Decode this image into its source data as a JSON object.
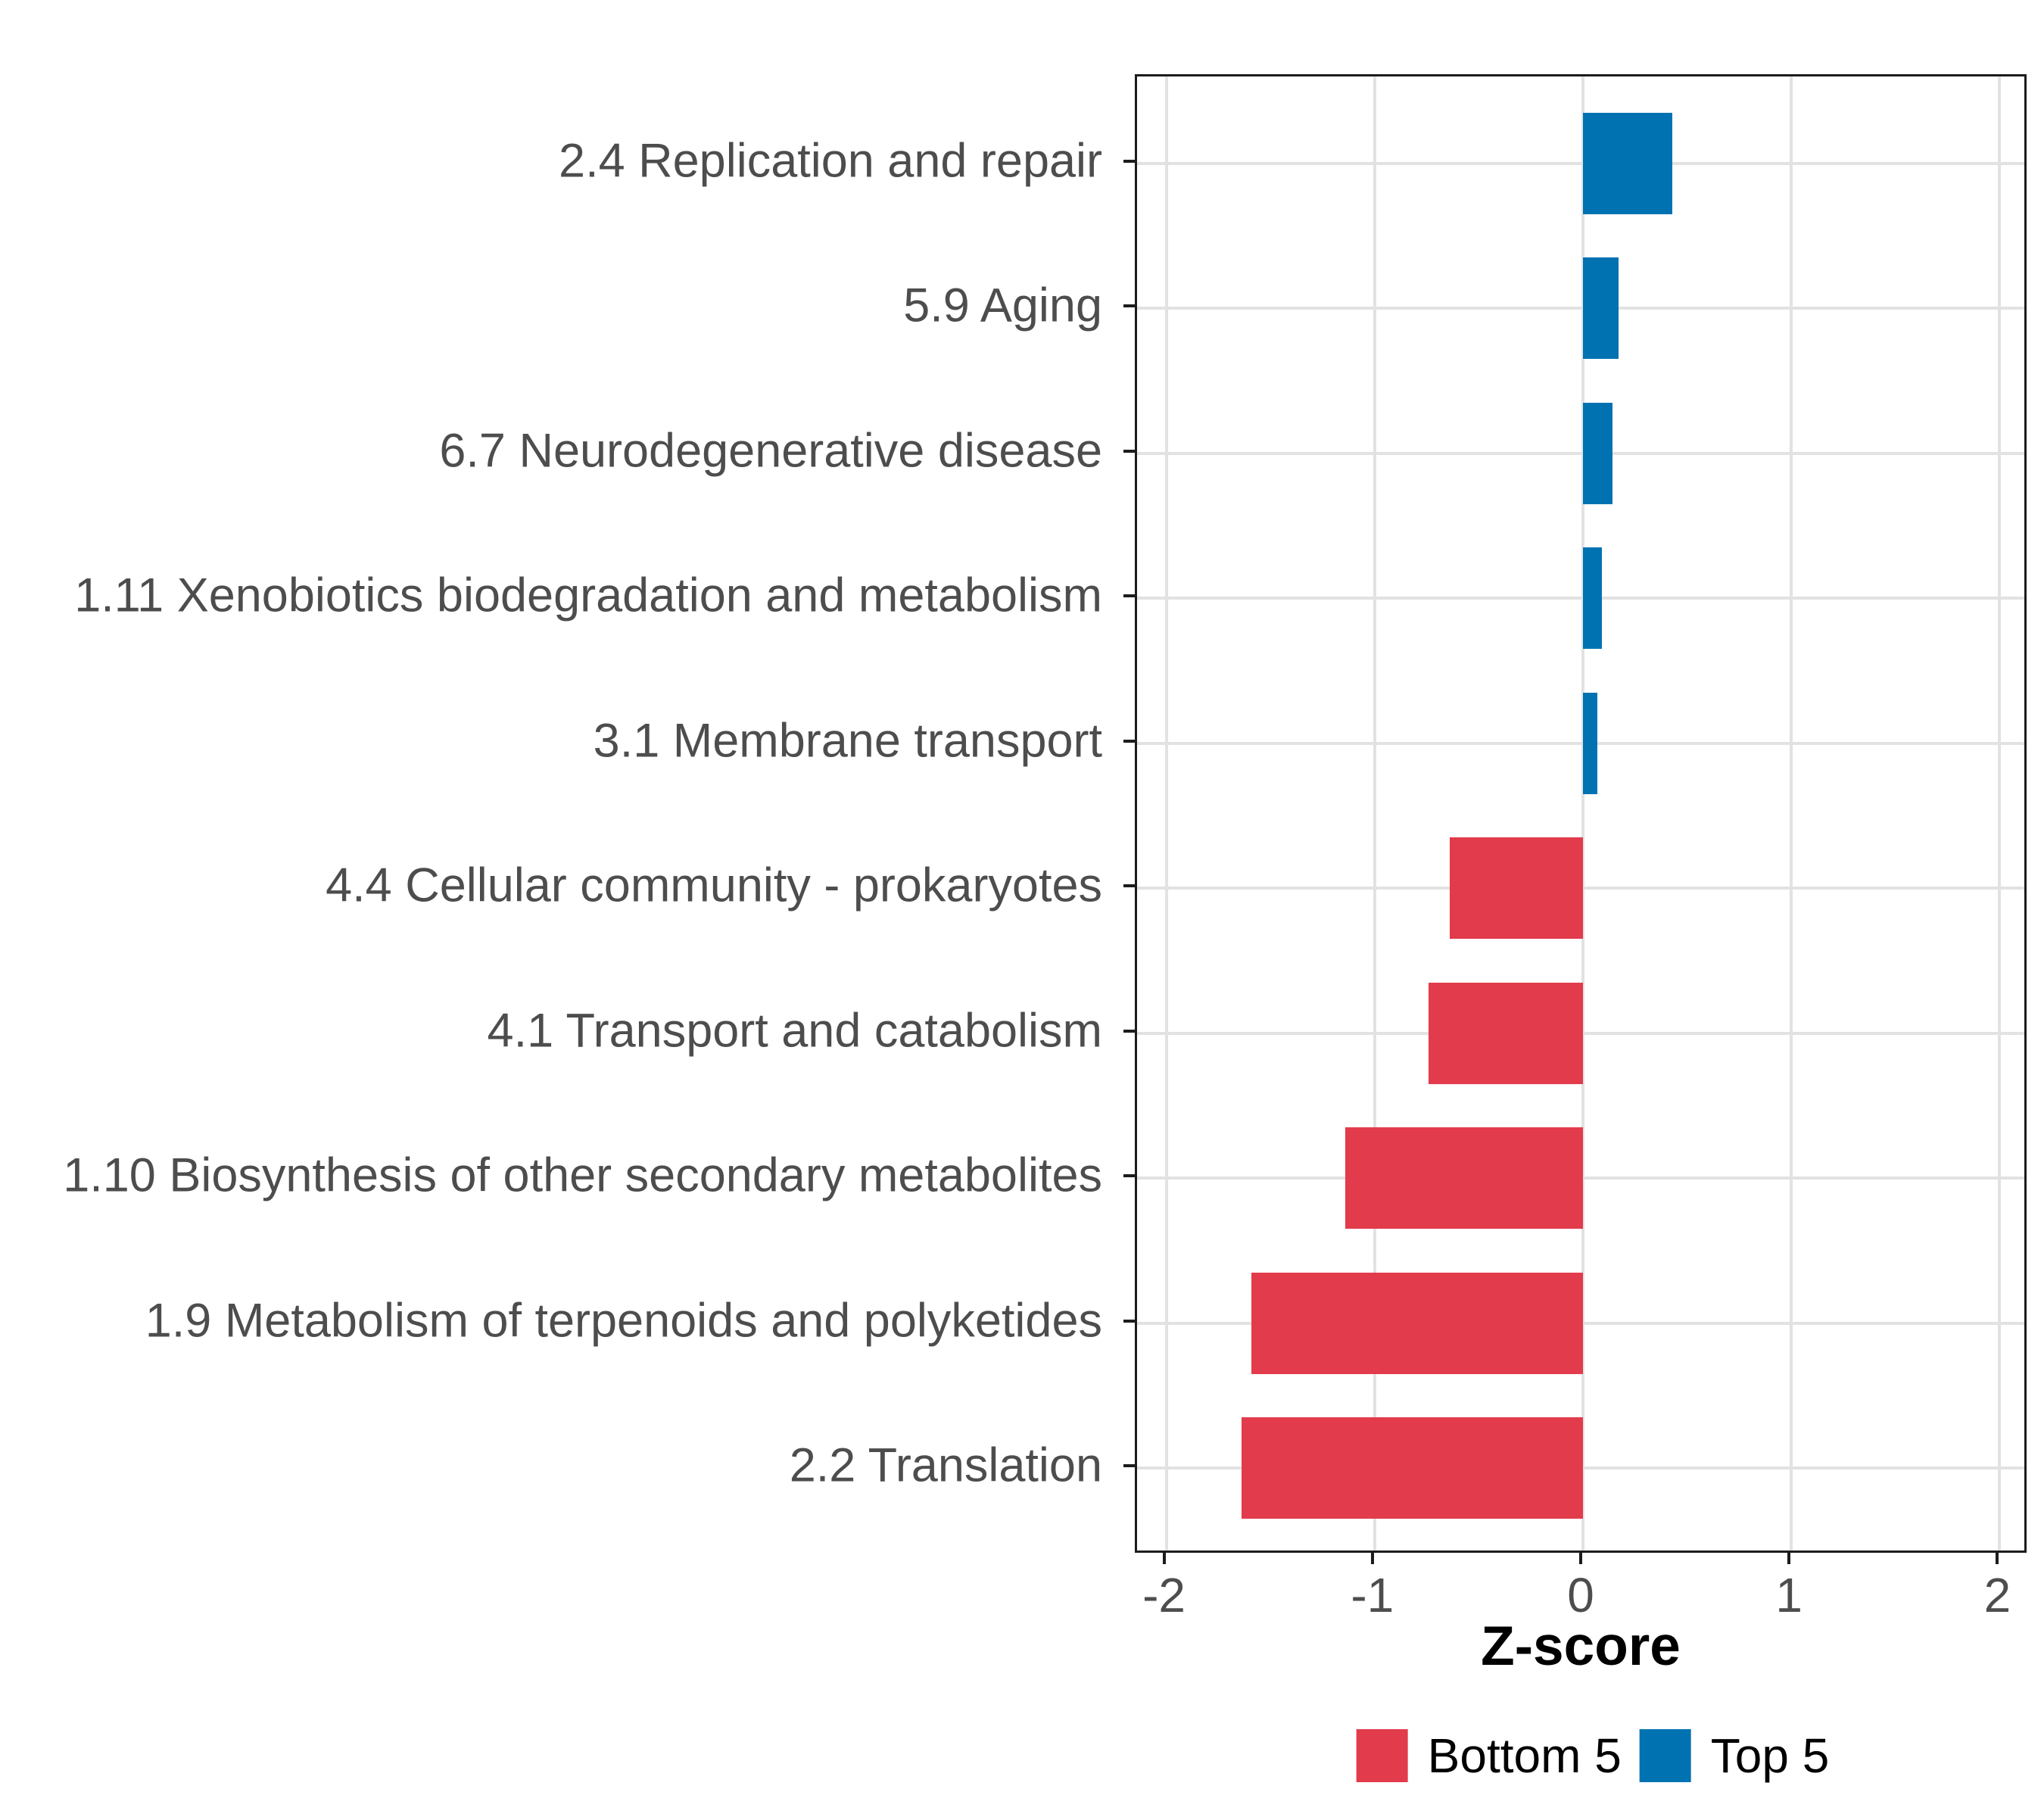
{
  "chart_data": {
    "type": "bar",
    "orientation": "horizontal",
    "title": "",
    "xlabel": "Z-score",
    "ylabel": "",
    "categories": [
      "2.4 Replication and repair",
      "5.9 Aging",
      "6.7 Neurodegenerative disease",
      "1.11 Xenobiotics biodegradation and metabolism",
      "3.1 Membrane transport",
      "4.4 Cellular community - prokaryotes",
      "4.1 Transport and catabolism",
      "1.10 Biosynthesis of other secondary metabolites",
      "1.9 Metabolism of terpenoids and polyketides",
      "2.2 Translation"
    ],
    "series": [
      {
        "name": "Z-score",
        "values": [
          0.43,
          0.17,
          0.14,
          0.09,
          0.07,
          -0.64,
          -0.74,
          -1.14,
          -1.59,
          -1.64
        ]
      }
    ],
    "groups": [
      "Top 5",
      "Top 5",
      "Top 5",
      "Top 5",
      "Top 5",
      "Bottom 5",
      "Bottom 5",
      "Bottom 5",
      "Bottom 5",
      "Bottom 5"
    ],
    "xticks": [
      -2,
      -1,
      0,
      1,
      2
    ],
    "xtick_labels": [
      "-2",
      "-1",
      "0",
      "1",
      "2"
    ],
    "xlim": [
      -2.14,
      2.14
    ],
    "bar_width_frac": 0.7,
    "grid": "major-only",
    "colors": {
      "Top 5": "#0072B2",
      "Bottom 5": "#E23B4C",
      "grid": "#E2E2E2",
      "panel_border": "#1C1C1C",
      "axis_text": "#4D4D4D",
      "axis_title": "#000000"
    },
    "legend": {
      "position": "bottom",
      "items": [
        {
          "label": "Bottom 5",
          "color": "#E23B4C"
        },
        {
          "label": "Top 5",
          "color": "#0072B2"
        }
      ]
    }
  }
}
